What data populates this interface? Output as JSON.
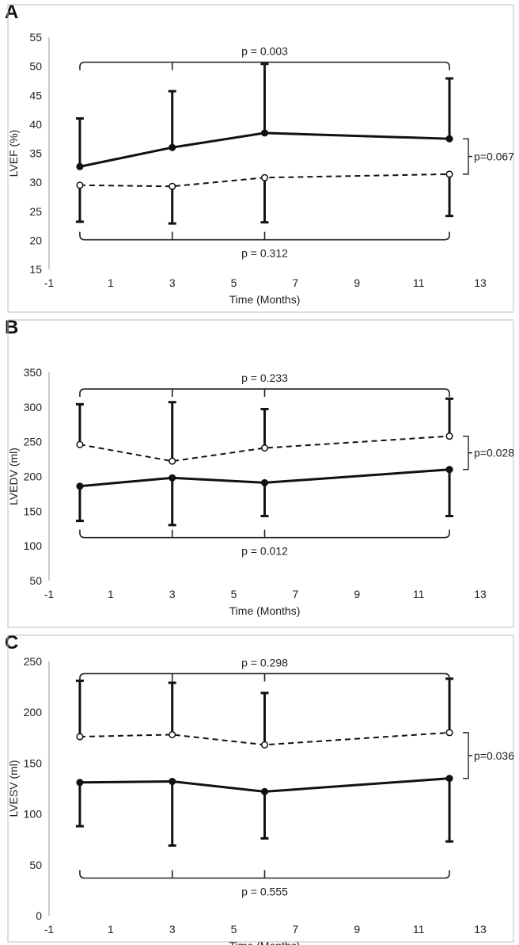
{
  "chart_data": [
    {
      "panel_label": "A",
      "type": "line",
      "xlabel": "Time (Months)",
      "ylabel": "LVEF (%)",
      "xlim": [
        -1,
        13
      ],
      "ylim": [
        15,
        55
      ],
      "x_ticks": [
        -1,
        1,
        3,
        5,
        7,
        9,
        11,
        13
      ],
      "y_ticks": [
        15,
        20,
        25,
        30,
        35,
        40,
        45,
        50,
        55
      ],
      "grid": false,
      "series": [
        {
          "style": "solid",
          "marker": "filled-circle",
          "x": [
            0,
            3,
            6,
            12
          ],
          "values": [
            32.7,
            36.0,
            38.5,
            37.5
          ],
          "error_up": [
            41.0,
            45.7,
            50.4,
            47.9
          ]
        },
        {
          "style": "dashed",
          "marker": "open-circle",
          "x": [
            0,
            3,
            6,
            12
          ],
          "values": [
            29.5,
            29.3,
            30.8,
            31.4
          ],
          "error_down": [
            23.2,
            22.9,
            23.1,
            24.2
          ]
        }
      ],
      "annotations": {
        "top_bracket": {
          "label": "p = 0.003",
          "y": 50.7,
          "ticks_at": [
            0,
            3,
            6,
            12
          ]
        },
        "bottom_bracket": {
          "label": "p = 0.312",
          "y": 20.1,
          "ticks_at": [
            0,
            3,
            6,
            12
          ]
        },
        "side_bracket": {
          "label": "p=0.067",
          "y_from": 37.5,
          "y_to": 31.4
        }
      }
    },
    {
      "panel_label": "B",
      "type": "line",
      "xlabel": "Time (Months)",
      "ylabel": "LVEDV (ml)",
      "xlim": [
        -1,
        13
      ],
      "ylim": [
        50,
        350
      ],
      "x_ticks": [
        -1,
        1,
        3,
        5,
        7,
        9,
        11,
        13
      ],
      "y_ticks": [
        50,
        100,
        150,
        200,
        250,
        300,
        350
      ],
      "grid": false,
      "series": [
        {
          "style": "solid",
          "marker": "filled-circle",
          "x": [
            0,
            3,
            6,
            12
          ],
          "values": [
            186,
            198,
            191,
            210
          ],
          "error_down": [
            136,
            130,
            143,
            143
          ]
        },
        {
          "style": "dashed",
          "marker": "open-circle",
          "x": [
            0,
            3,
            6,
            12
          ],
          "values": [
            246,
            222,
            241,
            258
          ],
          "error_up": [
            304,
            307,
            297,
            312
          ]
        }
      ],
      "annotations": {
        "top_bracket": {
          "label": "p = 0.233",
          "y": 326,
          "ticks_at": [
            0,
            3,
            6,
            12
          ]
        },
        "bottom_bracket": {
          "label": "p = 0.012",
          "y": 112,
          "ticks_at": [
            0,
            3,
            6,
            12
          ]
        },
        "side_bracket": {
          "label": "p=0.028",
          "y_from": 258,
          "y_to": 210
        }
      }
    },
    {
      "panel_label": "C",
      "type": "line",
      "xlabel": "Time (Months)",
      "ylabel": "LVESV (ml)",
      "xlim": [
        -1,
        13
      ],
      "ylim": [
        0,
        250
      ],
      "x_ticks": [
        -1,
        1,
        3,
        5,
        7,
        9,
        11,
        13
      ],
      "y_ticks": [
        0,
        50,
        100,
        150,
        200,
        250
      ],
      "grid": false,
      "series": [
        {
          "style": "solid",
          "marker": "filled-circle",
          "x": [
            0,
            3,
            6,
            12
          ],
          "values": [
            131,
            132,
            122,
            135
          ],
          "error_down": [
            88,
            69,
            76,
            73
          ]
        },
        {
          "style": "dashed",
          "marker": "open-circle",
          "x": [
            0,
            3,
            6,
            12
          ],
          "values": [
            176,
            178,
            168,
            180
          ],
          "error_up": [
            231,
            229,
            219,
            233
          ]
        }
      ],
      "annotations": {
        "top_bracket": {
          "label": "p = 0.298",
          "y": 238,
          "ticks_at": [
            0,
            3,
            6,
            12
          ]
        },
        "bottom_bracket": {
          "label": "p = 0.555",
          "y": 37,
          "ticks_at": [
            0,
            3,
            6,
            12
          ]
        },
        "side_bracket": {
          "label": "p=0.036",
          "y_from": 180,
          "y_to": 135
        }
      }
    }
  ]
}
